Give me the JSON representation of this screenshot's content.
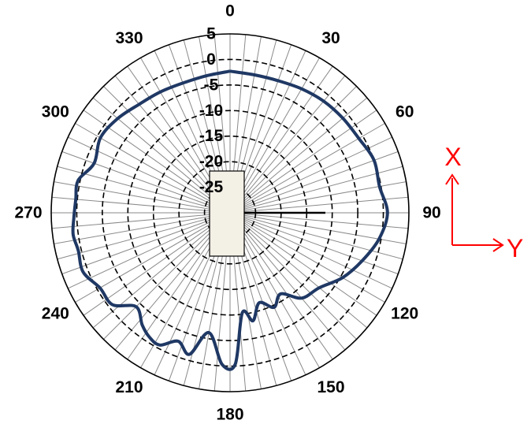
{
  "chart_data": {
    "type": "polar-line",
    "angle_labels": [
      "0",
      "30",
      "60",
      "90",
      "120",
      "150",
      "180",
      "210",
      "240",
      "270",
      "300",
      "330"
    ],
    "radial_tick_labels": [
      "5",
      "0",
      "-5",
      "-10",
      "-15",
      "-20",
      "-25"
    ],
    "radial_range": [
      -30,
      5
    ],
    "angular_gridline_step_deg": 5,
    "grid": true,
    "series": [
      {
        "color": "#1f3864",
        "angles_deg": [
          0,
          10,
          20,
          30,
          40,
          50,
          60,
          70,
          80,
          90,
          100,
          110,
          120,
          130,
          140,
          148,
          155,
          162,
          168,
          173,
          178,
          183,
          190,
          196,
          202,
          208,
          213,
          218,
          225,
          232,
          240,
          248,
          256,
          262,
          268,
          275,
          282,
          290,
          300,
          310,
          320,
          330,
          340,
          350,
          360
        ],
        "values": [
          -2.3,
          -2.6,
          -2.5,
          -2.0,
          -1.5,
          -1.2,
          -0.9,
          0.0,
          -0.3,
          0.8,
          -0.4,
          -2.5,
          -4.6,
          -7.2,
          -8.2,
          -11.3,
          -9.6,
          -11.5,
          -8.4,
          -10.3,
          -0.4,
          -0.3,
          -6.2,
          -1.2,
          -2.9,
          -0.7,
          -1.0,
          -2.1,
          -4.0,
          -0.8,
          -0.6,
          1.0,
          0.6,
          1.0,
          0.6,
          0.3,
          0.4,
          -1.7,
          -0.7,
          -1.3,
          -2.3,
          -2.7,
          -3.0,
          -2.8,
          -2.3
        ]
      }
    ]
  },
  "axis_indicator": {
    "x_label": "X",
    "y_label": "Y",
    "color": "#ff0000"
  },
  "overlay": {
    "antenna_fill": "#f3f0e6",
    "feed_line_color": "#000000"
  }
}
